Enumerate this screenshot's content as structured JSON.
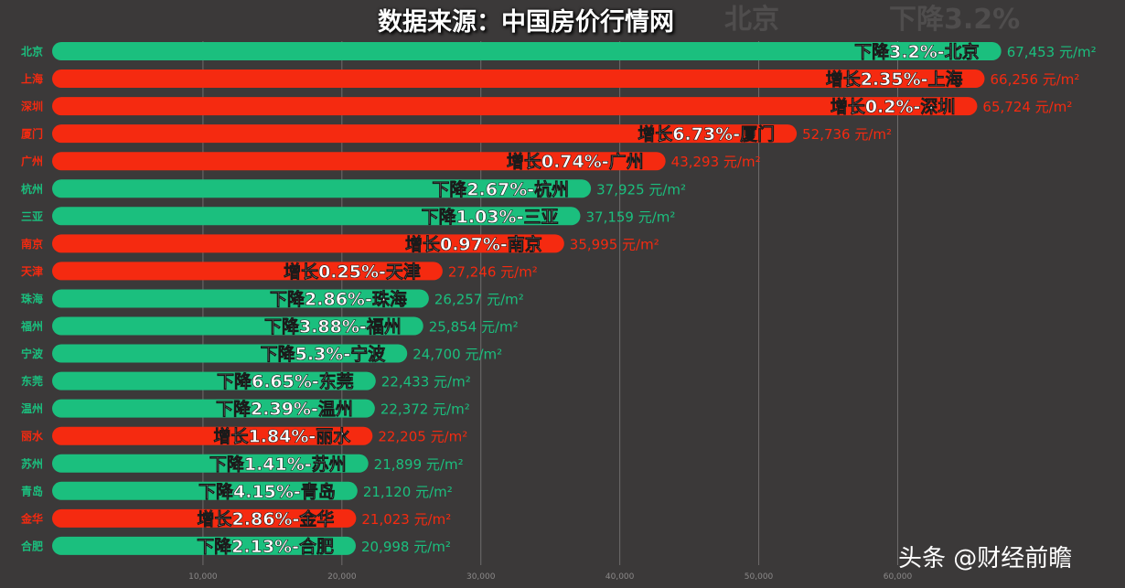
{
  "header": {
    "title": "数据来源：中国房价行情网",
    "ghost_city": "北京",
    "ghost_change": "下降3.2%"
  },
  "watermark": "头条 @财经前瞻",
  "colors": {
    "background": "#3b3939",
    "decrease": "#1bbf7e",
    "increase": "#f52a10",
    "grid": "#6e6c6c"
  },
  "chart_data": {
    "type": "bar",
    "orientation": "horizontal",
    "unit": "元/m²",
    "xlim": [
      0,
      69000
    ],
    "x_ticks": [
      10000,
      20000,
      30000,
      40000,
      50000,
      60000
    ],
    "x_tick_labels": [
      "10,000",
      "20,000",
      "30,000",
      "40,000",
      "50,000",
      "60,000"
    ],
    "grid": true,
    "categories": [
      "北京",
      "上海",
      "深圳",
      "厦门",
      "广州",
      "杭州",
      "三亚",
      "南京",
      "天津",
      "珠海",
      "福州",
      "宁波",
      "东莞",
      "温州",
      "丽水",
      "苏州",
      "青岛",
      "金华",
      "合肥"
    ],
    "values": [
      67453,
      66256,
      65724,
      52736,
      43293,
      37925,
      37159,
      35995,
      27246,
      26257,
      25854,
      24700,
      22433,
      22372,
      22205,
      21899,
      21120,
      21023,
      20998
    ],
    "value_labels": [
      "67,453 元/m²",
      "66,256 元/m²",
      "65,724 元/m²",
      "52,736 元/m²",
      "43,293 元/m²",
      "37,925 元/m²",
      "37,159 元/m²",
      "35,995 元/m²",
      "27,246 元/m²",
      "26,257 元/m²",
      "25,854 元/m²",
      "24,700 元/m²",
      "22,433 元/m²",
      "22,372 元/m²",
      "22,205 元/m²",
      "21,899 元/m²",
      "21,120 元/m²",
      "21,023 元/m²",
      "20,998 元/m²"
    ],
    "bar_labels": [
      "下降3.2%-北京",
      "增长2.35%-上海",
      "增长0.2%-深圳",
      "增长6.73%-厦门",
      "增长0.74%-广州",
      "下降2.67%-杭州",
      "下降1.03%-三亚",
      "增长0.97%-南京",
      "增长0.25%-天津",
      "下降2.86%-珠海",
      "下降3.88%-福州",
      "下降5.3%-宁波",
      "下降6.65%-东莞",
      "下降2.39%-温州",
      "增长1.84%-丽水",
      "下降1.41%-苏州",
      "下降4.15%-青岛",
      "增长2.86%-金华",
      "下降2.13%-合肥"
    ],
    "trend": [
      "down",
      "up",
      "up",
      "up",
      "up",
      "down",
      "down",
      "up",
      "up",
      "down",
      "down",
      "down",
      "down",
      "down",
      "up",
      "down",
      "down",
      "up",
      "down"
    ]
  }
}
